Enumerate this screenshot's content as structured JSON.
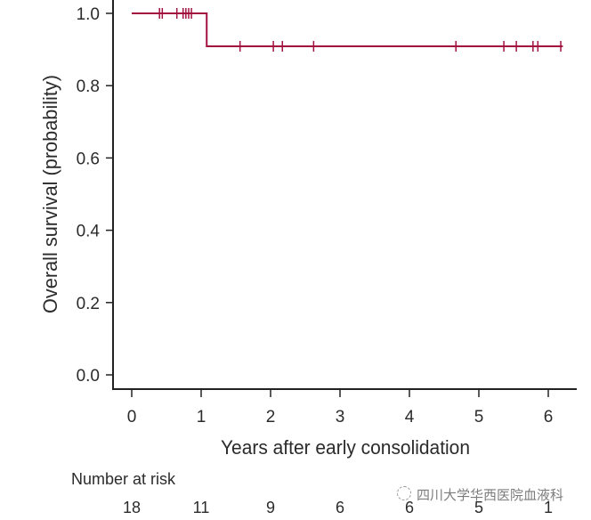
{
  "chart_data": {
    "type": "line",
    "subtype": "kaplan-meier",
    "xlabel": "Years after early consolidation",
    "ylabel": "Overall survival (probability)",
    "xlim": [
      0,
      6.3
    ],
    "ylim": [
      0,
      1.0
    ],
    "xticks": [
      "0",
      "1",
      "2",
      "3",
      "4",
      "5",
      "6"
    ],
    "yticks": [
      "0.0",
      "0.2",
      "0.4",
      "0.6",
      "0.8",
      "1.0"
    ],
    "grid": false,
    "color": "#a3123f",
    "steps": [
      {
        "x": 0,
        "y": 1.0
      },
      {
        "x": 1.08,
        "y": 1.0
      },
      {
        "x": 1.08,
        "y": 0.909
      },
      {
        "x": 6.21,
        "y": 0.909
      }
    ],
    "censored": [
      {
        "x": 0.4,
        "y": 1.0
      },
      {
        "x": 0.44,
        "y": 1.0
      },
      {
        "x": 0.65,
        "y": 1.0
      },
      {
        "x": 0.74,
        "y": 1.0
      },
      {
        "x": 0.78,
        "y": 1.0
      },
      {
        "x": 0.82,
        "y": 1.0
      },
      {
        "x": 0.86,
        "y": 1.0
      },
      {
        "x": 1.56,
        "y": 0.909
      },
      {
        "x": 2.04,
        "y": 0.909
      },
      {
        "x": 2.17,
        "y": 0.909
      },
      {
        "x": 2.62,
        "y": 0.909
      },
      {
        "x": 4.67,
        "y": 0.909
      },
      {
        "x": 5.36,
        "y": 0.909
      },
      {
        "x": 5.54,
        "y": 0.909
      },
      {
        "x": 5.78,
        "y": 0.909
      },
      {
        "x": 5.85,
        "y": 0.909
      },
      {
        "x": 6.18,
        "y": 0.909
      }
    ],
    "risk_table": {
      "title": "Number at risk",
      "times": [
        0,
        1,
        2,
        3,
        4,
        5,
        6
      ],
      "counts": [
        "18",
        "11",
        "9",
        "6",
        "6",
        "5",
        "1"
      ]
    }
  },
  "watermark": "四川大学华西医院血液科"
}
